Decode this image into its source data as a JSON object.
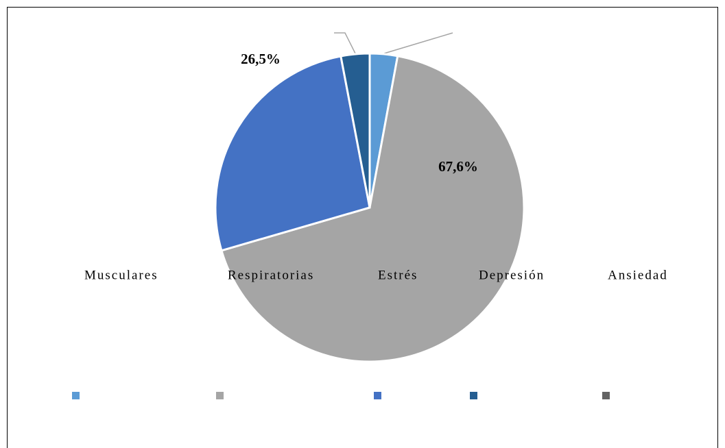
{
  "chart_data": {
    "type": "pie",
    "categories": [
      "Musculares",
      "Respiratorias",
      "Estrés",
      "Depresión",
      "Ansiedad"
    ],
    "values": [
      2.9,
      67.6,
      26.5,
      3.0,
      0
    ],
    "value_labels": [
      null,
      "67,6%",
      "26,5%",
      null,
      null
    ],
    "colors": [
      "#5b9bd5",
      "#a5a5a5",
      "#4472c4",
      "#255e91",
      "#636363"
    ],
    "legend": "bottom"
  }
}
